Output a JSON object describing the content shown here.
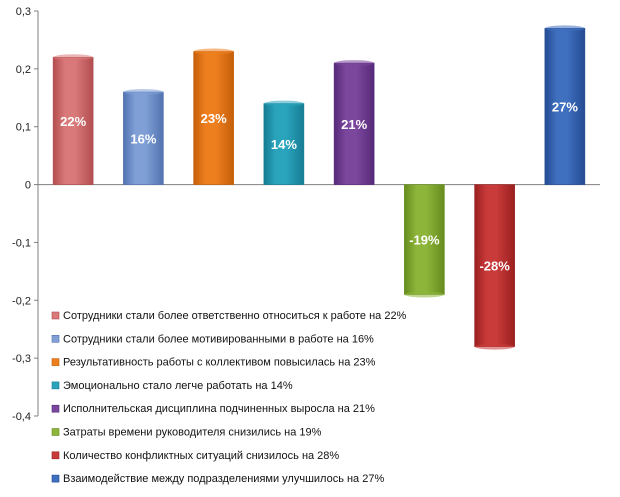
{
  "chart_data": {
    "type": "bar",
    "ylim": [
      -0.4,
      0.3
    ],
    "yticks": [
      {
        "value": 0.3,
        "label": "0,3"
      },
      {
        "value": 0.2,
        "label": "0,2"
      },
      {
        "value": 0.1,
        "label": "0,1"
      },
      {
        "value": 0,
        "label": "0"
      },
      {
        "value": -0.1,
        "label": "-0,1"
      },
      {
        "value": -0.2,
        "label": "-0,2"
      },
      {
        "value": -0.3,
        "label": "-0,3"
      },
      {
        "value": -0.4,
        "label": "-0,4"
      }
    ],
    "grid": false,
    "legend_position": "bottom-left-inside",
    "bars": [
      {
        "value": 0.22,
        "data_label": "22%",
        "legend": "Сотрудники стали более ответственно относиться к работе на 22%",
        "color": "#d9797a",
        "dark": "#b24d4f"
      },
      {
        "value": 0.16,
        "data_label": "16%",
        "legend": "Сотрудники стали более мотивированными в работе на 16%",
        "color": "#7f9fd6",
        "dark": "#5273b0"
      },
      {
        "value": 0.23,
        "data_label": "23%",
        "legend": "Результативность работы с коллективом повысилась на 23%",
        "color": "#ee7f1f",
        "dark": "#c45f0a"
      },
      {
        "value": 0.14,
        "data_label": "14%",
        "legend": "Эмоционально стало легче работать на 14%",
        "color": "#2aa4bd",
        "dark": "#167d93"
      },
      {
        "value": 0.21,
        "data_label": "21%",
        "legend": "Исполнительская дисциплина подчиненных выросла на 21%",
        "color": "#7b479c",
        "dark": "#56297a"
      },
      {
        "value": -0.19,
        "data_label": "-19%",
        "legend": "Затраты времени руководителя снизились на 19%",
        "color": "#8db53a",
        "dark": "#668c1e"
      },
      {
        "value": -0.28,
        "data_label": "-28%",
        "legend": "Количество конфликтных ситуаций снизилось на 28%",
        "color": "#c93a3a",
        "dark": "#9a1f1f"
      },
      {
        "value": 0.27,
        "data_label": "27%",
        "legend": "Взаимодействие между подразделениями улучшилось на 27%",
        "color": "#3f6fbf",
        "dark": "#244b92"
      }
    ]
  }
}
